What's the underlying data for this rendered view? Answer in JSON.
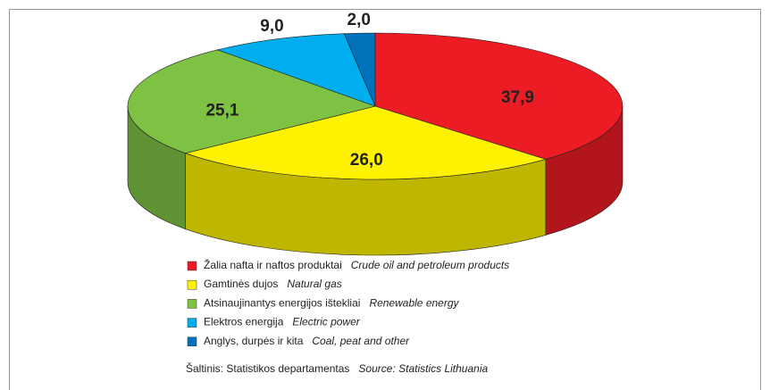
{
  "chart_data": {
    "type": "pie",
    "categories": [
      "Žalia nafta ir naftos produktai",
      "Gamtinės dujos",
      "Atsinaujinantys energijos ištekliai",
      "Elektros energija",
      "Anglys, durpės ir kita"
    ],
    "categories_en": [
      "Crude oil and petroleum products",
      "Natural gas",
      "Renewable energy",
      "Electric power",
      "Coal, peat and other"
    ],
    "values": [
      37.9,
      26.0,
      25.1,
      9.0,
      2.0
    ],
    "value_labels": [
      "37,9",
      "26,0",
      "25,1",
      "9,0",
      "2,0"
    ],
    "colors": [
      "#ed1c24",
      "#fff200",
      "#7dc242",
      "#00aeef",
      "#0072bc"
    ],
    "source": "Šaltinis: Statistikos departamentas",
    "source_en": "Source: Statistics Lithuania"
  }
}
